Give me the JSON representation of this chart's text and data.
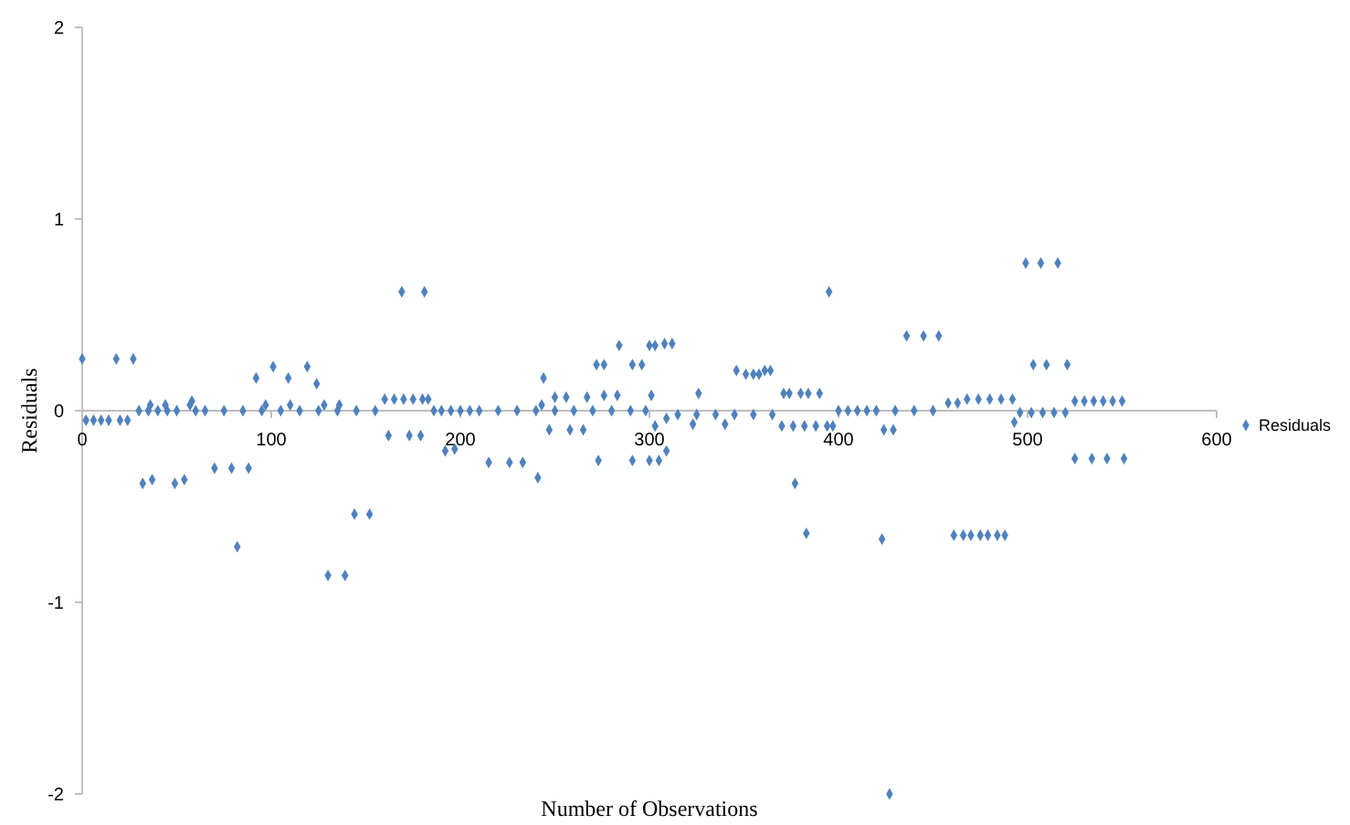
{
  "chart_data": {
    "type": "scatter",
    "xlabel": "Number of Observations",
    "ylabel": "Residuals",
    "xlim": [
      0,
      600
    ],
    "xticks": [
      0,
      100,
      200,
      300,
      400,
      500,
      600
    ],
    "ylim": [
      -2,
      2
    ],
    "yticks": [
      -2,
      -1,
      0,
      1,
      2
    ],
    "grid": false,
    "legend": "right",
    "marker": "diamond",
    "series": [
      {
        "name": "Residuals",
        "color": "#4f81bd",
        "x": [
          0,
          18,
          27,
          2,
          6,
          10,
          14,
          20,
          24,
          32,
          37,
          49,
          54,
          70,
          79,
          88,
          82,
          130,
          139,
          144,
          152,
          169,
          181,
          92,
          101,
          109,
          119,
          124,
          58,
          162,
          173,
          179,
          192,
          197,
          30,
          35,
          40,
          45,
          50,
          60,
          65,
          75,
          85,
          95,
          105,
          115,
          125,
          135,
          145,
          155,
          36,
          44,
          57,
          97,
          110,
          128,
          136,
          160,
          165,
          170,
          175,
          180,
          183,
          186,
          190,
          195,
          200,
          205,
          210,
          220,
          230,
          240,
          250,
          260,
          270,
          280,
          290,
          298,
          243,
          215,
          226,
          233,
          241,
          244,
          247,
          250,
          256,
          258,
          265,
          267,
          273,
          272,
          276,
          276,
          283,
          284,
          291,
          296,
          291,
          300,
          303,
          300,
          305,
          301,
          303,
          309,
          308,
          312,
          309,
          323,
          326,
          340,
          346,
          351,
          355,
          358,
          361,
          364,
          315,
          325,
          335,
          345,
          355,
          365,
          371,
          374,
          380,
          384,
          390,
          370,
          376,
          382,
          388,
          394,
          397,
          377,
          383,
          395,
          400,
          405,
          410,
          415,
          420,
          430,
          440,
          450,
          424,
          429,
          436,
          445,
          453,
          458,
          463,
          468,
          474,
          480,
          486,
          492,
          499,
          507,
          516,
          503,
          510,
          521,
          493,
          496,
          502,
          508,
          514,
          520,
          525,
          530,
          535,
          540,
          545,
          550,
          525,
          534,
          542,
          551,
          427,
          423,
          461,
          466,
          470,
          475,
          479,
          484,
          488
        ],
        "values": [
          0.27,
          0.27,
          0.27,
          -0.05,
          -0.05,
          -0.05,
          -0.05,
          -0.05,
          -0.05,
          -0.38,
          -0.36,
          -0.38,
          -0.36,
          -0.3,
          -0.3,
          -0.3,
          -0.71,
          -0.86,
          -0.86,
          -0.54,
          -0.54,
          0.62,
          0.62,
          0.17,
          0.23,
          0.17,
          0.23,
          0.14,
          0.05,
          -0.13,
          -0.13,
          -0.13,
          -0.21,
          -0.2,
          0,
          0,
          0,
          0,
          0,
          0,
          0,
          0,
          0,
          0,
          0,
          0,
          0,
          0,
          0,
          0,
          0.03,
          0.03,
          0.03,
          0.03,
          0.03,
          0.03,
          0.03,
          0.06,
          0.06,
          0.06,
          0.06,
          0.06,
          0.06,
          0,
          0,
          0,
          0,
          0,
          0,
          0,
          0,
          0,
          0,
          0,
          0,
          0,
          0,
          0,
          0.03,
          -0.27,
          -0.27,
          -0.27,
          -0.35,
          0.17,
          -0.1,
          0.07,
          0.07,
          -0.1,
          -0.1,
          0.07,
          -0.26,
          0.24,
          0.24,
          0.08,
          0.08,
          0.34,
          0.24,
          0.24,
          -0.26,
          0.34,
          0.34,
          -0.26,
          -0.26,
          0.08,
          -0.08,
          -0.21,
          0.35,
          0.35,
          -0.04,
          -0.07,
          0.09,
          -0.07,
          0.21,
          0.19,
          0.19,
          0.19,
          0.21,
          0.21,
          -0.02,
          -0.02,
          -0.02,
          -0.02,
          -0.02,
          -0.02,
          0.09,
          0.09,
          0.09,
          0.09,
          0.09,
          -0.08,
          -0.08,
          -0.08,
          -0.08,
          -0.08,
          -0.08,
          -0.38,
          -0.64,
          0.62,
          0,
          0,
          0,
          0,
          0,
          0,
          0,
          0,
          -0.1,
          -0.1,
          0.39,
          0.39,
          0.39,
          0.04,
          0.04,
          0.06,
          0.06,
          0.06,
          0.06,
          0.06,
          0.77,
          0.77,
          0.77,
          0.24,
          0.24,
          0.24,
          -0.06,
          -0.01,
          -0.01,
          -0.01,
          -0.01,
          -0.01,
          0.05,
          0.05,
          0.05,
          0.05,
          0.05,
          0.05,
          -0.25,
          -0.25,
          -0.25,
          -0.25,
          -2,
          -0.67,
          -0.65,
          -0.65,
          -0.65,
          -0.65,
          -0.65,
          -0.65,
          -0.65
        ]
      }
    ]
  }
}
